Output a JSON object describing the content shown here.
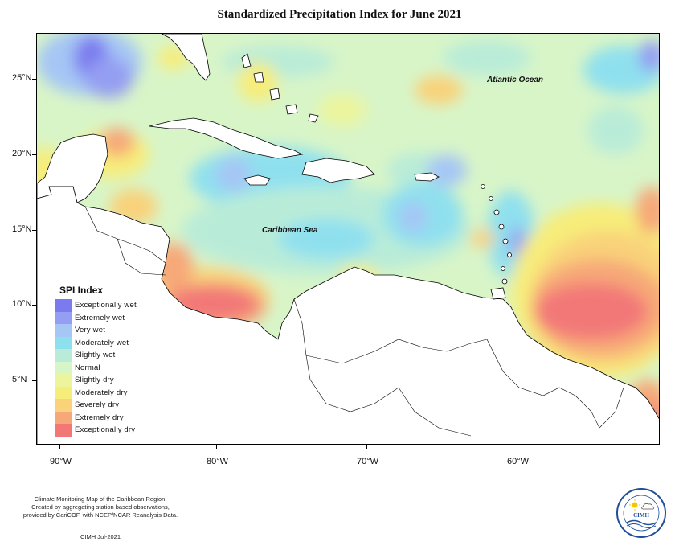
{
  "title": "Standardized Precipitation Index for June 2021",
  "map": {
    "extent": {
      "lon_min": -92.0,
      "lon_max": -50.0,
      "lat_min": 0.5,
      "lat_max": 28.0
    },
    "latitude_labels": [
      "25°N",
      "20°N",
      "15°N",
      "10°N",
      "5°N"
    ],
    "longitude_labels": [
      "90°W",
      "80°W",
      "70°W",
      "60°W"
    ],
    "labels": {
      "atlantic": "Atlantic Ocean",
      "caribbean": "Caribbean Sea"
    }
  },
  "legend": {
    "title": "SPI Index",
    "items": [
      {
        "label": "Exceptionally wet",
        "color": "#7b7bef"
      },
      {
        "label": "Extremely wet",
        "color": "#949ef2"
      },
      {
        "label": "Very wet",
        "color": "#a6c6f5"
      },
      {
        "label": "Moderately wet",
        "color": "#8fe0ef"
      },
      {
        "label": "Slightly wet",
        "color": "#b9ecd8"
      },
      {
        "label": "Normal",
        "color": "#d8f5c8"
      },
      {
        "label": "Slightly dry",
        "color": "#ecf59c"
      },
      {
        "label": "Moderately dry",
        "color": "#f7ed7a"
      },
      {
        "label": "Severely dry",
        "color": "#f9d27a"
      },
      {
        "label": "Extremely dry",
        "color": "#f7a878"
      },
      {
        "label": "Exceptionally dry",
        "color": "#f27878"
      }
    ]
  },
  "footer": {
    "lines": [
      "Climate Monitoring Map of the Caribbean Region.",
      "Created by aggregating station based observations,",
      "provided by CariCOF, with NCEP/NCAR Reanalysis Data."
    ],
    "credit": "CIMH Jul-2021"
  },
  "logo": {
    "text": "CIMH"
  }
}
